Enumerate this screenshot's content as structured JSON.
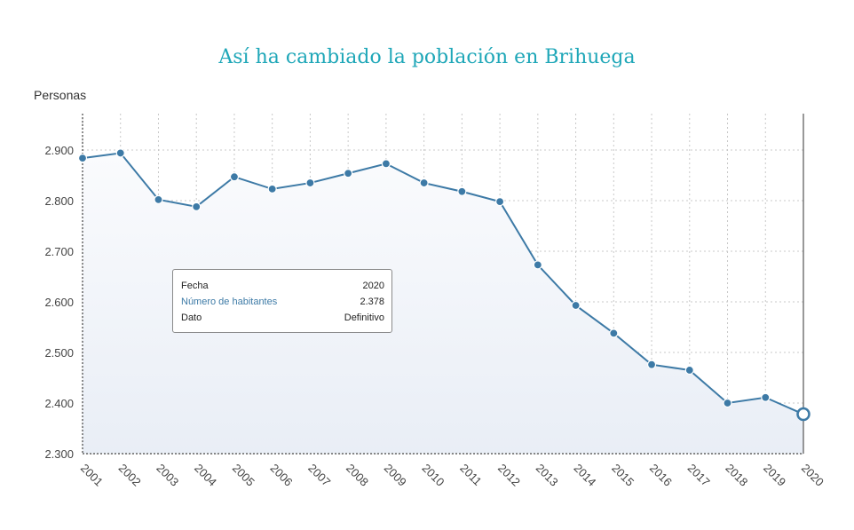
{
  "chart_data": {
    "type": "line",
    "title": "Así ha cambiado la población en Brihuega",
    "ylabel": "Personas",
    "xlabel": "",
    "categories": [
      "2001",
      "2002",
      "2003",
      "2004",
      "2005",
      "2006",
      "2007",
      "2008",
      "2009",
      "2010",
      "2011",
      "2012",
      "2013",
      "2014",
      "2015",
      "2016",
      "2017",
      "2018",
      "2019",
      "2020"
    ],
    "series": [
      {
        "name": "Número de habitantes",
        "values": [
          2884,
          2894,
          2802,
          2788,
          2847,
          2823,
          2835,
          2854,
          2873,
          2835,
          2818,
          2798,
          2673,
          2593,
          2538,
          2476,
          2465,
          2400,
          2411,
          2378
        ]
      }
    ],
    "ylim": [
      2300,
      2950
    ],
    "yticks": [
      2300,
      2400,
      2500,
      2600,
      2700,
      2800,
      2900
    ],
    "ytick_labels": [
      "2.300",
      "2.400",
      "2.500",
      "2.600",
      "2.700",
      "2.800",
      "2.900"
    ],
    "grid": true,
    "area_fill": true,
    "highlighted_index": 19
  },
  "tooltip": {
    "rows": [
      {
        "label": "Fecha",
        "value": "2020"
      },
      {
        "label": "Número de habitantes",
        "value": "2.378"
      },
      {
        "label": "Dato",
        "value": "Definitivo"
      }
    ]
  },
  "colors": {
    "title": "#1fa7b8",
    "line": "#3d7aa6",
    "grid": "#c8c8c8",
    "area_top": "#fafbfd",
    "area_bottom": "#e9eef6",
    "tooltip_series_label": "#3d7aa6"
  }
}
